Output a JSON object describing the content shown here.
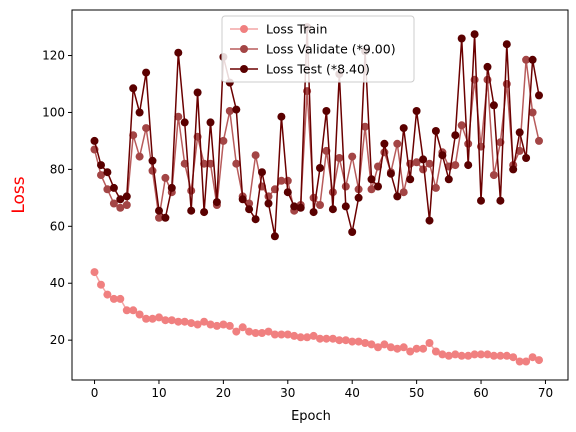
{
  "chart_data": {
    "type": "line",
    "title": "",
    "xlabel": "Epoch",
    "ylabel": "Loss",
    "ylabel_color": "#ff0000",
    "xlim": [
      -3.5,
      73.5
    ],
    "ylim": [
      6,
      136
    ],
    "xticks": [
      0,
      10,
      20,
      30,
      40,
      50,
      60,
      70
    ],
    "yticks": [
      20,
      40,
      60,
      80,
      100,
      120
    ],
    "grid": false,
    "legend_position": "top-center",
    "series": [
      {
        "name": "Loss Train",
        "color": "#f08080",
        "line_color": "#f4a6a6",
        "marker": "circle",
        "x": [
          0,
          1,
          2,
          3,
          4,
          5,
          6,
          7,
          8,
          9,
          10,
          11,
          12,
          13,
          14,
          15,
          16,
          17,
          18,
          19,
          20,
          21,
          22,
          23,
          24,
          25,
          26,
          27,
          28,
          29,
          30,
          31,
          32,
          33,
          34,
          35,
          36,
          37,
          38,
          39,
          40,
          41,
          42,
          43,
          44,
          45,
          46,
          47,
          48,
          49,
          50,
          51,
          52,
          53,
          54,
          55,
          56,
          57,
          58,
          59,
          60,
          61,
          62,
          63,
          64,
          65,
          66,
          67,
          68,
          69
        ],
        "values": [
          43.9,
          39.5,
          36.0,
          34.5,
          34.5,
          30.5,
          30.5,
          29.0,
          27.5,
          27.5,
          28.0,
          27.0,
          27.0,
          26.5,
          26.5,
          26.0,
          25.5,
          26.5,
          25.5,
          25.0,
          25.5,
          25.0,
          23.0,
          24.5,
          23.0,
          22.5,
          22.5,
          23.0,
          22.0,
          22.0,
          22.0,
          21.5,
          21.0,
          21.0,
          21.5,
          20.5,
          20.5,
          20.5,
          20.0,
          20.0,
          19.5,
          19.5,
          19.0,
          18.5,
          17.5,
          18.5,
          17.5,
          17.0,
          17.5,
          16.0,
          17.0,
          17.0,
          19.0,
          16.0,
          15.0,
          14.5,
          15.0,
          14.5,
          14.5,
          15.0,
          15.0,
          15.0,
          14.5,
          14.5,
          14.5,
          14.0,
          12.5,
          12.5,
          14.0,
          13.0
        ]
      },
      {
        "name": "Loss Validate (*9.00)",
        "color": "#a34545",
        "line_color": "#b85c5c",
        "marker": "circle",
        "x": [
          0,
          1,
          2,
          3,
          4,
          5,
          6,
          7,
          8,
          9,
          10,
          11,
          12,
          13,
          14,
          15,
          16,
          17,
          18,
          19,
          20,
          21,
          22,
          23,
          24,
          25,
          26,
          27,
          28,
          29,
          30,
          31,
          32,
          33,
          34,
          35,
          36,
          37,
          38,
          39,
          40,
          41,
          42,
          43,
          44,
          45,
          46,
          47,
          48,
          49,
          50,
          51,
          52,
          53,
          54,
          55,
          56,
          57,
          58,
          59,
          60,
          61,
          62,
          63,
          64,
          65,
          66,
          67,
          68,
          69
        ],
        "values": [
          87.0,
          78.0,
          73.0,
          68.0,
          66.5,
          67.5,
          92.0,
          84.5,
          94.5,
          79.5,
          63.0,
          77.0,
          72.0,
          98.5,
          82.0,
          72.5,
          91.5,
          82.0,
          82.0,
          67.5,
          90.0,
          100.5,
          82.0,
          70.5,
          68.0,
          85.0,
          74.0,
          70.5,
          73.0,
          76.0,
          76.0,
          65.5,
          67.5,
          107.5,
          70.0,
          67.5,
          86.5,
          72.0,
          84.0,
          74.0,
          84.5,
          73.0,
          95.0,
          73.0,
          81.0,
          86.0,
          79.0,
          89.0,
          72.0,
          82.0,
          82.5,
          80.0,
          82.0,
          73.5,
          86.0,
          81.0,
          81.5,
          95.5,
          89.0,
          111.5,
          88.0,
          111.5,
          78.0,
          89.5,
          110.0,
          81.5,
          86.5,
          118.5,
          100.0,
          90.0
        ]
      },
      {
        "name": "Loss Test (*8.40)",
        "color": "#5a0000",
        "line_color": "#6b0000",
        "marker": "circle",
        "x": [
          0,
          1,
          2,
          3,
          4,
          5,
          6,
          7,
          8,
          9,
          10,
          11,
          12,
          13,
          14,
          15,
          16,
          17,
          18,
          19,
          20,
          21,
          22,
          23,
          24,
          25,
          26,
          27,
          28,
          29,
          30,
          31,
          32,
          33,
          34,
          35,
          36,
          37,
          38,
          39,
          40,
          41,
          42,
          43,
          44,
          45,
          46,
          47,
          48,
          49,
          50,
          51,
          52,
          53,
          54,
          55,
          56,
          57,
          58,
          59,
          60,
          61,
          62,
          63,
          64,
          65,
          66,
          67,
          68,
          69
        ],
        "values": [
          90.0,
          81.5,
          79.0,
          73.5,
          69.5,
          70.5,
          108.5,
          100.0,
          114.0,
          83.0,
          65.5,
          63.0,
          73.5,
          121.0,
          96.5,
          65.5,
          107.0,
          65.0,
          96.5,
          68.5,
          119.5,
          110.5,
          101.0,
          69.5,
          66.0,
          62.5,
          79.0,
          68.0,
          56.5,
          98.5,
          72.0,
          67.0,
          66.5,
          130.0,
          65.0,
          80.5,
          100.5,
          66.0,
          113.5,
          67.0,
          58.0,
          70.0,
          121.5,
          76.5,
          74.0,
          89.0,
          78.5,
          70.5,
          94.5,
          76.5,
          100.5,
          83.5,
          62.0,
          93.5,
          85.0,
          76.5,
          92.0,
          126.0,
          81.5,
          127.5,
          69.0,
          116.0,
          102.5,
          69.0,
          124.0,
          80.0,
          93.0,
          84.0,
          118.5,
          106.0
        ]
      }
    ]
  }
}
